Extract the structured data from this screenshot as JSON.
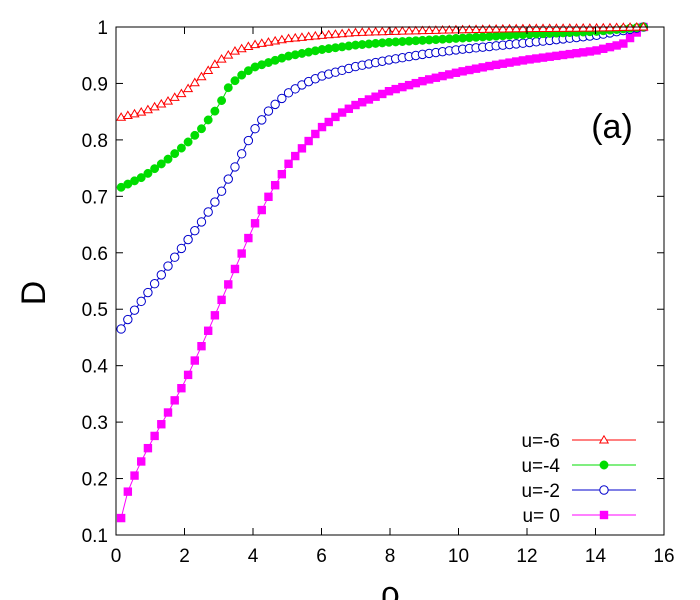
{
  "chart_data": {
    "type": "line",
    "title": "",
    "xlabel": "ρ",
    "ylabel": "D",
    "annotation": "(a)",
    "xlim": [
      0,
      16
    ],
    "ylim": [
      0.1,
      1
    ],
    "xticks": [
      0,
      2,
      4,
      6,
      8,
      10,
      12,
      14,
      16
    ],
    "yticks": [
      0.1,
      0.2,
      0.3,
      0.4,
      0.5,
      0.6,
      0.7,
      0.8,
      0.9,
      1
    ],
    "xtick_labels": [
      "0",
      "2",
      "4",
      "6",
      "8",
      "10",
      "12",
      "14",
      "16"
    ],
    "ytick_labels": [
      "0.1",
      "0.2",
      "0.3",
      "0.4",
      "0.5",
      "0.6",
      "0.7",
      "0.8",
      "0.9",
      "1"
    ],
    "grid": false,
    "legend_position": "bottom-right",
    "x_range": [
      0.15,
      15.4
    ],
    "points_per_series": 79,
    "series": [
      {
        "name": "u=-6",
        "color": "#ff0000",
        "marker": "triangle-open",
        "knots": [
          [
            0.15,
            0.84
          ],
          [
            0.8,
            0.85
          ],
          [
            1.5,
            0.868
          ],
          [
            2.0,
            0.885
          ],
          [
            2.5,
            0.912
          ],
          [
            3.0,
            0.94
          ],
          [
            3.5,
            0.958
          ],
          [
            4.0,
            0.968
          ],
          [
            5.0,
            0.979
          ],
          [
            6.0,
            0.985
          ],
          [
            7.0,
            0.99
          ],
          [
            8.0,
            0.992
          ],
          [
            10.0,
            0.995
          ],
          [
            12.0,
            0.997
          ],
          [
            14.0,
            0.998
          ],
          [
            15.4,
            1.0
          ]
        ]
      },
      {
        "name": "u=-4",
        "color": "#00dd00",
        "marker": "circle-filled",
        "knots": [
          [
            0.15,
            0.716
          ],
          [
            0.8,
            0.735
          ],
          [
            1.5,
            0.765
          ],
          [
            2.0,
            0.79
          ],
          [
            2.5,
            0.82
          ],
          [
            3.0,
            0.86
          ],
          [
            3.3,
            0.895
          ],
          [
            3.6,
            0.912
          ],
          [
            4.0,
            0.928
          ],
          [
            5.0,
            0.948
          ],
          [
            6.0,
            0.96
          ],
          [
            7.0,
            0.968
          ],
          [
            8.0,
            0.973
          ],
          [
            10.0,
            0.98
          ],
          [
            12.0,
            0.987
          ],
          [
            14.0,
            0.992
          ],
          [
            15.4,
            1.0
          ]
        ]
      },
      {
        "name": "u=-2",
        "color": "#0000cc",
        "marker": "circle-open",
        "knots": [
          [
            0.15,
            0.465
          ],
          [
            0.5,
            0.495
          ],
          [
            1.0,
            0.535
          ],
          [
            1.5,
            0.575
          ],
          [
            2.0,
            0.615
          ],
          [
            2.5,
            0.655
          ],
          [
            3.0,
            0.7
          ],
          [
            3.5,
            0.755
          ],
          [
            4.0,
            0.815
          ],
          [
            4.5,
            0.855
          ],
          [
            5.0,
            0.882
          ],
          [
            5.5,
            0.9
          ],
          [
            6.0,
            0.913
          ],
          [
            7.0,
            0.93
          ],
          [
            8.0,
            0.942
          ],
          [
            9.0,
            0.952
          ],
          [
            10.0,
            0.96
          ],
          [
            12.0,
            0.972
          ],
          [
            14.0,
            0.985
          ],
          [
            15.4,
            1.0
          ]
        ]
      },
      {
        "name": "u= 0",
        "color": "#ff00ff",
        "marker": "square-filled",
        "knots": [
          [
            0.15,
            0.13
          ],
          [
            0.3,
            0.17
          ],
          [
            0.5,
            0.2
          ],
          [
            0.75,
            0.232
          ],
          [
            1.0,
            0.262
          ],
          [
            1.5,
            0.315
          ],
          [
            2.0,
            0.37
          ],
          [
            2.5,
            0.435
          ],
          [
            3.0,
            0.505
          ],
          [
            3.5,
            0.575
          ],
          [
            4.0,
            0.645
          ],
          [
            4.5,
            0.705
          ],
          [
            5.0,
            0.755
          ],
          [
            5.5,
            0.79
          ],
          [
            6.0,
            0.822
          ],
          [
            6.5,
            0.845
          ],
          [
            7.0,
            0.862
          ],
          [
            8.0,
            0.887
          ],
          [
            9.0,
            0.905
          ],
          [
            10.0,
            0.92
          ],
          [
            11.0,
            0.932
          ],
          [
            12.0,
            0.942
          ],
          [
            13.0,
            0.95
          ],
          [
            14.0,
            0.958
          ],
          [
            14.8,
            0.97
          ],
          [
            15.4,
            1.0
          ]
        ]
      }
    ]
  }
}
